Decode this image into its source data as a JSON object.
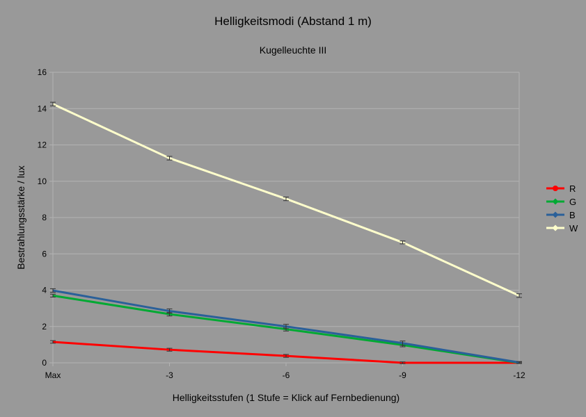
{
  "chart_data": {
    "type": "line",
    "title": "Helligkeitsmodi (Abstand 1 m)",
    "subtitle": "Kugelleuchte III",
    "xlabel": "Helligkeitsstufen (1 Stufe = Klick auf Fernbedienung)",
    "ylabel": "Bestrahlungsstärke / lux",
    "categories": [
      "Max",
      "-3",
      "-6",
      "-9",
      "-12"
    ],
    "ylim": [
      0,
      16
    ],
    "yticks": [
      0,
      2,
      4,
      6,
      8,
      10,
      12,
      14,
      16
    ],
    "grid": true,
    "legend_position": "right",
    "error_bars": true,
    "series": [
      {
        "name": "R",
        "color": "#ff0000",
        "marker": "circle",
        "values": [
          1.15,
          0.72,
          0.38,
          0.0,
          0.0
        ],
        "errors": [
          0.07,
          0.08,
          0.08,
          0.05,
          0.03
        ]
      },
      {
        "name": "G",
        "color": "#00a933",
        "marker": "diamond",
        "values": [
          3.7,
          2.68,
          1.85,
          0.98,
          0.0
        ],
        "errors": [
          0.08,
          0.1,
          0.1,
          0.1,
          0.04
        ]
      },
      {
        "name": "B",
        "color": "#2a6099",
        "marker": "diamond",
        "values": [
          3.98,
          2.85,
          2.0,
          1.08,
          0.02
        ],
        "errors": [
          0.1,
          0.12,
          0.12,
          0.12,
          0.05
        ]
      },
      {
        "name": "W",
        "color": "#ffffcc",
        "marker": "diamond",
        "values": [
          14.25,
          11.27,
          9.03,
          6.63,
          3.7
        ],
        "errors": [
          0.1,
          0.1,
          0.1,
          0.08,
          0.1
        ]
      }
    ]
  }
}
